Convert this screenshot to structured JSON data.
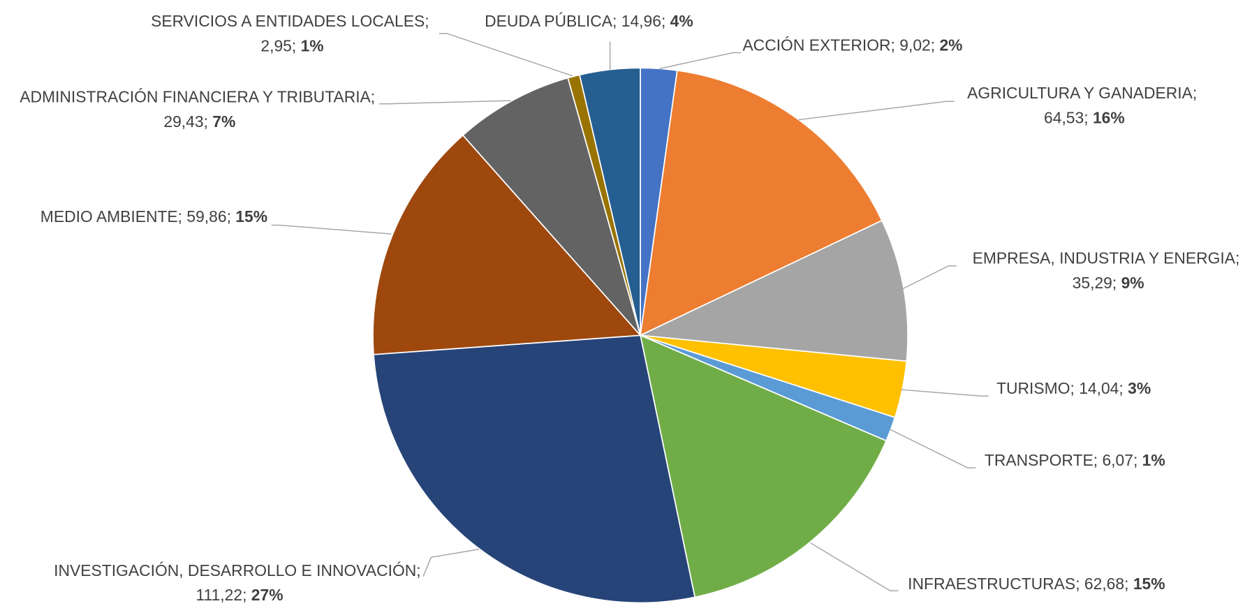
{
  "chart_data": {
    "type": "pie",
    "label_separator": "; ",
    "categories": [
      "ACCIÓN EXTERIOR",
      "AGRICULTURA Y GANADERIA",
      "EMPRESA, INDUSTRIA Y ENERGIA",
      "TURISMO",
      "TRANSPORTE",
      "INFRAESTRUCTURAS",
      "INVESTIGACIÓN, DESARROLLO E INNOVACIÓN",
      "MEDIO AMBIENTE",
      "ADMINISTRACIÓN FINANCIERA Y TRIBUTARIA",
      "SERVICIOS A ENTIDADES LOCALES",
      "DEUDA PÚBLICA"
    ],
    "values": [
      9.02,
      64.53,
      35.29,
      14.04,
      6.07,
      62.68,
      111.22,
      59.86,
      29.43,
      2.95,
      14.96
    ],
    "value_labels": [
      "9,02",
      "64,53",
      "35,29",
      "14,04",
      "6,07",
      "62,68",
      "111,22",
      "59,86",
      "29,43",
      "2,95",
      "14,96"
    ],
    "percentages": [
      2,
      16,
      9,
      3,
      1,
      15,
      27,
      15,
      7,
      1,
      4
    ],
    "percentage_labels": [
      "2%",
      "16%",
      "9%",
      "3%",
      "1%",
      "15%",
      "27%",
      "15%",
      "7%",
      "1%",
      "4%"
    ],
    "colors": [
      "#4472c4",
      "#ed7d31",
      "#a5a5a5",
      "#ffc000",
      "#5b9bd5",
      "#70ad47",
      "#264478",
      "#9e480e",
      "#636363",
      "#997300",
      "#255e91"
    ]
  }
}
